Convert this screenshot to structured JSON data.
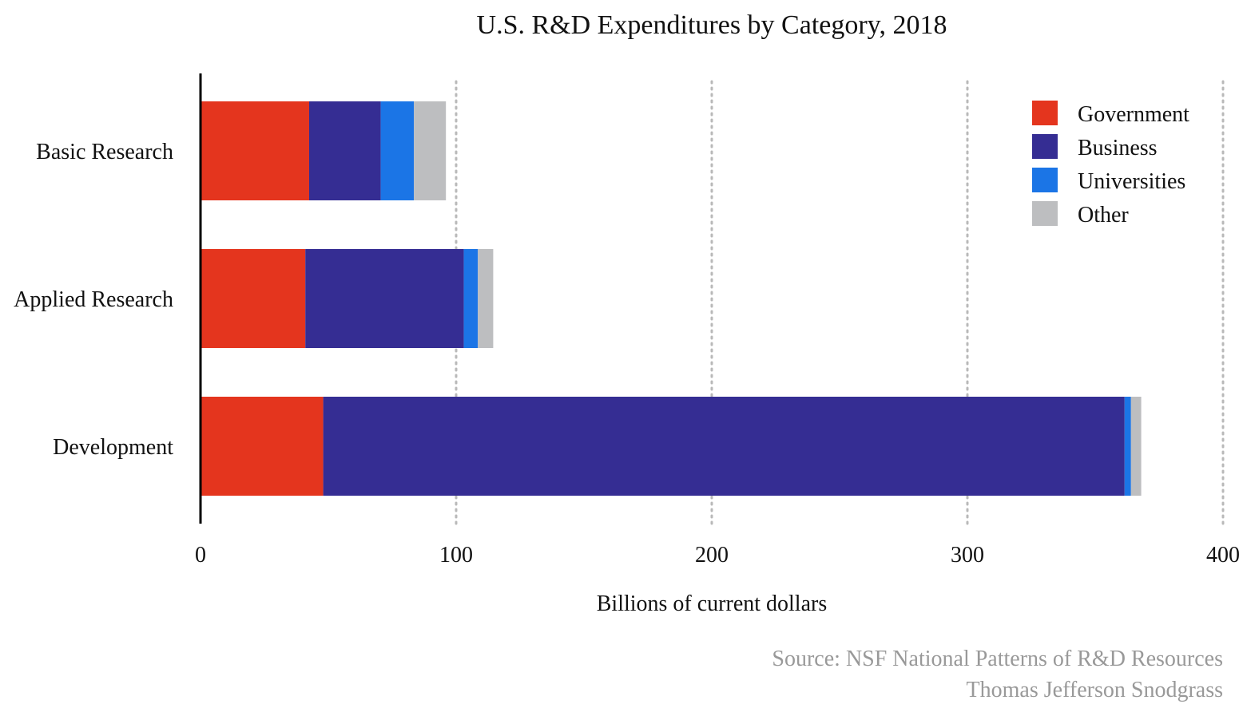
{
  "chart_data": {
    "type": "bar",
    "orientation": "horizontal",
    "stacked": true,
    "title": "U.S. R&D Expenditures by Category, 2018",
    "xlabel": "Billions of current dollars",
    "ylabel": "",
    "xlim": [
      0,
      400
    ],
    "xticks": [
      0,
      100,
      200,
      300,
      400
    ],
    "grid": "vertical dotted",
    "legend_position": "top-right",
    "categories": [
      "Basic Research",
      "Applied Research",
      "Development"
    ],
    "series": [
      {
        "name": "Government",
        "color": "#e4351e",
        "values": [
          42.5,
          41,
          48
        ]
      },
      {
        "name": "Business",
        "color": "#352d93",
        "values": [
          28,
          62,
          313.5
        ]
      },
      {
        "name": "Universities",
        "color": "#1b75e6",
        "values": [
          13,
          5.5,
          2.5
        ]
      },
      {
        "name": "Other",
        "color": "#bdbec0",
        "values": [
          12.5,
          6,
          4
        ]
      }
    ]
  },
  "source": "Source: NSF National Patterns of R&D Resources",
  "author": "Thomas Jefferson Snodgrass"
}
